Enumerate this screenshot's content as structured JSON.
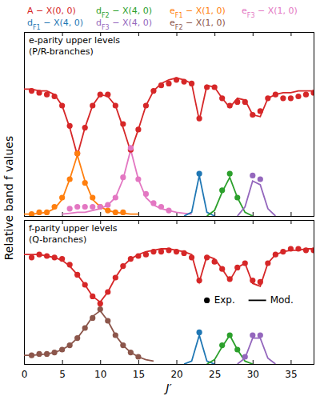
{
  "chart_data": {
    "type": "line",
    "x_label": "J′",
    "y_label": "Relative band f values",
    "xlim": [
      0,
      38
    ],
    "xticks": [
      0,
      5,
      10,
      15,
      20,
      25,
      30,
      35
    ],
    "ylim": [
      0,
      1
    ],
    "yticks": [],
    "tick_labels": "x",
    "legend": "top",
    "exp_label": "Exp.",
    "model_label": "Mod.",
    "bands": [
      {
        "name": "A − X(0, 0)",
        "color": "#d62728"
      },
      {
        "name": "dF1 − X(4, 0)",
        "color": "#1f77b4"
      },
      {
        "name": "dF2 − X(4, 0)",
        "color": "#2ca02c"
      },
      {
        "name": "dF3 − X(4, 0)",
        "color": "#9467bd"
      },
      {
        "name": "eF1 − X(1, 0)",
        "color": "#ff7f0e"
      },
      {
        "name": "eF2 − X(1, 0)",
        "color": "#8c564b"
      },
      {
        "name": "eF3 − X(1, 0)",
        "color": "#e377c2"
      }
    ],
    "panels": [
      {
        "title": "e-parity upper levels",
        "subtitle": "(P/R-branches)",
        "series": [
          {
            "band": 0,
            "type": "line",
            "x": [
              0,
              1,
              2,
              3,
              4,
              5,
              6,
              7,
              8,
              9,
              10,
              11,
              12,
              13,
              14,
              15,
              16,
              17,
              18,
              19,
              20,
              21,
              22,
              23,
              24,
              25,
              26,
              27,
              28,
              29,
              30,
              31,
              32,
              33,
              34,
              35,
              36,
              37,
              38
            ],
            "values": [
              0.69,
              0.69,
              0.68,
              0.68,
              0.66,
              0.6,
              0.48,
              0.33,
              0.48,
              0.6,
              0.66,
              0.65,
              0.6,
              0.48,
              0.35,
              0.47,
              0.6,
              0.68,
              0.72,
              0.74,
              0.75,
              0.74,
              0.72,
              0.52,
              0.71,
              0.7,
              0.64,
              0.59,
              0.64,
              0.63,
              0.55,
              0.54,
              0.64,
              0.66,
              0.67,
              0.67,
              0.68,
              0.68,
              0.68
            ]
          },
          {
            "band": 4,
            "type": "line",
            "x": [
              0,
              1,
              2,
              3,
              4,
              5,
              6,
              7,
              8,
              9,
              10,
              11,
              12,
              13,
              14,
              15
            ],
            "values": [
              0.01,
              0.01,
              0.015,
              0.02,
              0.04,
              0.09,
              0.2,
              0.33,
              0.19,
              0.09,
              0.05,
              0.03,
              0.02,
              0.015,
              0.01,
              0.01
            ]
          },
          {
            "band": 6,
            "type": "line",
            "x": [
              5,
              6,
              7,
              8,
              9,
              10,
              11,
              12,
              13,
              14,
              15,
              16,
              17,
              18,
              19,
              20,
              21,
              22
            ],
            "values": [
              0.01,
              0.015,
              0.02,
              0.02,
              0.03,
              0.04,
              0.06,
              0.1,
              0.2,
              0.36,
              0.2,
              0.1,
              0.06,
              0.04,
              0.03,
              0.02,
              0.015,
              0.01
            ]
          },
          {
            "band": 1,
            "type": "line",
            "x": [
              21,
              22,
              23,
              24,
              25
            ],
            "values": [
              0,
              0.02,
              0.22,
              0.02,
              0
            ]
          },
          {
            "band": 2,
            "type": "line",
            "x": [
              24,
              25,
              26,
              27,
              28,
              29,
              30
            ],
            "values": [
              0,
              0.03,
              0.13,
              0.21,
              0.1,
              0.02,
              0
            ]
          },
          {
            "band": 3,
            "type": "line",
            "x": [
              28,
              29,
              30,
              31,
              32,
              33
            ],
            "values": [
              0,
              0.05,
              0.19,
              0.17,
              0.04,
              0
            ]
          },
          {
            "band": 0,
            "type": "scatter",
            "marker": "circle",
            "x": [
              1,
              2,
              3,
              4,
              5,
              6,
              7,
              8,
              9,
              10,
              11,
              12,
              13,
              14,
              15,
              16,
              17,
              18,
              19,
              20,
              21,
              22,
              23,
              24,
              25,
              26,
              27,
              28,
              29,
              30,
              31,
              32,
              33,
              34,
              35,
              36,
              37,
              38
            ],
            "values": [
              0.68,
              0.67,
              0.66,
              0.65,
              0.6,
              0.49,
              0.34,
              0.48,
              0.6,
              0.66,
              0.66,
              0.6,
              0.5,
              0.36,
              0.47,
              0.6,
              0.68,
              0.71,
              0.72,
              0.74,
              0.73,
              0.72,
              0.53,
              0.7,
              0.7,
              0.64,
              0.6,
              0.62,
              0.62,
              0.55,
              0.57,
              0.64,
              0.66,
              0.64,
              0.64,
              0.65,
              0.66,
              0.67
            ]
          },
          {
            "band": 4,
            "type": "scatter",
            "marker": "circle",
            "x": [
              1,
              2,
              3,
              4,
              5,
              6,
              7,
              8,
              9,
              10,
              11,
              12,
              13
            ],
            "values": [
              0.01,
              0.02,
              0.02,
              0.05,
              0.1,
              0.2,
              0.34,
              0.18,
              0.1,
              0.05,
              0.03,
              0.02,
              0.02
            ]
          },
          {
            "band": 6,
            "type": "scatter",
            "marker": "circle",
            "x": [
              6,
              7,
              8,
              9,
              10,
              11,
              12,
              13,
              14,
              15,
              16,
              17,
              18,
              19
            ],
            "values": [
              0.04,
              0.05,
              0.05,
              0.05,
              0.05,
              0.06,
              0.1,
              0.21,
              0.37,
              0.2,
              0.12,
              0.07,
              0.05,
              0.03
            ]
          },
          {
            "band": 1,
            "type": "scatter",
            "marker": "circle",
            "x": [
              23
            ],
            "values": [
              0.23
            ]
          },
          {
            "band": 2,
            "type": "scatter",
            "marker": "circle",
            "x": [
              26,
              27,
              28
            ],
            "values": [
              0.14,
              0.23,
              0.1
            ]
          },
          {
            "band": 3,
            "type": "scatter",
            "marker": "circle",
            "x": [
              30,
              31
            ],
            "values": [
              0.22,
              0.2
            ]
          }
        ]
      },
      {
        "title": "f-parity upper levels",
        "subtitle": "(Q-branches)",
        "series": [
          {
            "band": 0,
            "type": "line",
            "x": [
              0,
              1,
              2,
              3,
              4,
              5,
              6,
              7,
              8,
              9,
              10,
              11,
              12,
              13,
              14,
              15,
              16,
              17,
              18,
              19,
              20,
              21,
              22,
              23,
              24,
              25,
              26,
              27,
              28,
              29,
              30,
              31,
              32,
              33,
              34,
              35,
              36,
              37,
              38
            ],
            "values": [
              0.76,
              0.76,
              0.76,
              0.75,
              0.74,
              0.72,
              0.68,
              0.62,
              0.55,
              0.47,
              0.43,
              0.5,
              0.6,
              0.68,
              0.73,
              0.76,
              0.78,
              0.79,
              0.8,
              0.8,
              0.79,
              0.78,
              0.76,
              0.57,
              0.75,
              0.73,
              0.66,
              0.58,
              0.67,
              0.7,
              0.56,
              0.54,
              0.7,
              0.76,
              0.78,
              0.79,
              0.79,
              0.8,
              0.8
            ]
          },
          {
            "band": 5,
            "type": "line",
            "x": [
              0,
              1,
              2,
              3,
              4,
              5,
              6,
              7,
              8,
              9,
              10,
              11,
              12,
              13,
              14,
              15,
              16,
              17
            ],
            "values": [
              0.06,
              0.06,
              0.065,
              0.07,
              0.08,
              0.1,
              0.13,
              0.18,
              0.25,
              0.33,
              0.37,
              0.3,
              0.2,
              0.13,
              0.08,
              0.05,
              0.03,
              0.02
            ]
          },
          {
            "band": 1,
            "type": "line",
            "x": [
              21,
              22,
              23,
              24,
              25
            ],
            "values": [
              0,
              0.02,
              0.2,
              0.02,
              0
            ]
          },
          {
            "band": 2,
            "type": "line",
            "x": [
              24,
              25,
              26,
              27,
              28,
              29,
              30
            ],
            "values": [
              0,
              0.03,
              0.12,
              0.2,
              0.1,
              0.02,
              0
            ]
          },
          {
            "band": 3,
            "type": "line",
            "x": [
              28,
              29,
              30,
              31,
              32,
              33
            ],
            "values": [
              0,
              0.04,
              0.18,
              0.18,
              0.04,
              0
            ]
          },
          {
            "band": 0,
            "type": "scatter",
            "marker": "circle",
            "x": [
              1,
              2,
              3,
              4,
              5,
              6,
              7,
              8,
              9,
              10,
              11,
              12,
              13,
              14,
              15,
              16,
              17,
              18,
              19,
              20,
              21,
              22,
              23,
              24,
              25,
              26,
              27,
              28,
              29,
              30,
              31,
              32,
              33,
              34,
              35,
              36,
              37,
              38
            ],
            "values": [
              0.74,
              0.76,
              0.75,
              0.74,
              0.73,
              0.69,
              0.62,
              0.55,
              0.47,
              0.42,
              0.5,
              0.6,
              0.68,
              0.73,
              0.75,
              0.76,
              0.78,
              0.78,
              0.79,
              0.78,
              0.77,
              0.74,
              0.58,
              0.74,
              0.71,
              0.66,
              0.59,
              0.67,
              0.7,
              0.58,
              0.57,
              0.7,
              0.76,
              0.78,
              0.8,
              0.8,
              0.79,
              0.79
            ]
          },
          {
            "band": 5,
            "type": "scatter",
            "marker": "circle",
            "x": [
              1,
              2,
              3,
              4,
              5,
              6,
              7,
              8,
              9,
              10,
              11,
              12,
              13,
              14,
              15
            ],
            "values": [
              0.06,
              0.07,
              0.07,
              0.08,
              0.1,
              0.13,
              0.18,
              0.25,
              0.32,
              0.38,
              0.3,
              0.2,
              0.13,
              0.08,
              0.05
            ]
          },
          {
            "band": 1,
            "type": "scatter",
            "marker": "circle",
            "x": [
              23
            ],
            "values": [
              0.22
            ]
          },
          {
            "band": 2,
            "type": "scatter",
            "marker": "circle",
            "x": [
              26,
              27,
              28
            ],
            "values": [
              0.13,
              0.2,
              0.1
            ]
          },
          {
            "band": 3,
            "type": "scatter",
            "marker": "circle",
            "x": [
              29,
              30,
              31
            ],
            "values": [
              0.05,
              0.2,
              0.2
            ]
          }
        ]
      }
    ]
  }
}
